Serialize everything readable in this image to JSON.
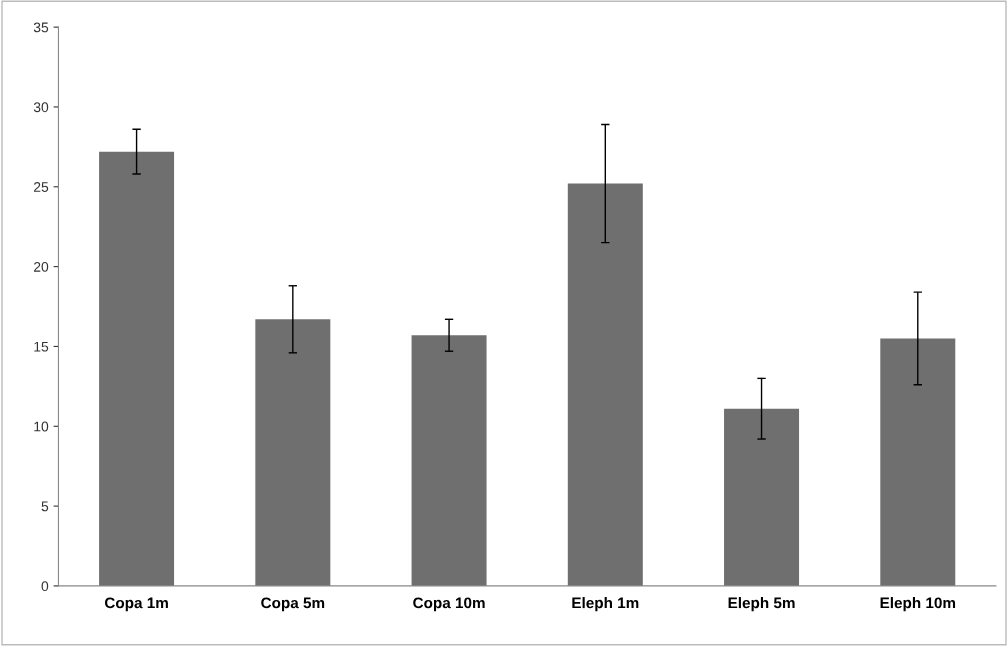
{
  "chart_data": {
    "type": "bar",
    "categories": [
      "Copa 1m",
      "Copa 5m",
      "Copa 10m",
      "Eleph 1m",
      "Eleph 5m",
      "Eleph 10m"
    ],
    "values": [
      27.2,
      16.7,
      15.7,
      25.2,
      11.1,
      15.5
    ],
    "errors": [
      1.4,
      2.1,
      1.0,
      3.7,
      1.9,
      2.9
    ],
    "color": "#6f6f6f",
    "ylim": [
      0,
      35
    ],
    "yticks": [
      0,
      5,
      10,
      15,
      20,
      25,
      30,
      35
    ],
    "grid": false
  }
}
